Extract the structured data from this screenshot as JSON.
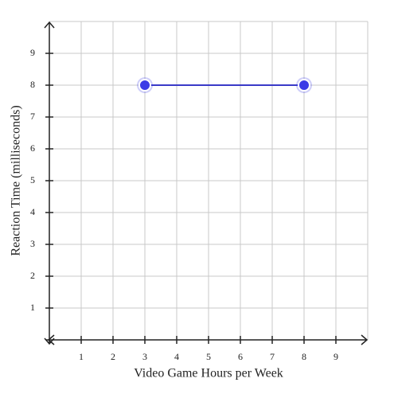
{
  "chart_data": {
    "type": "line",
    "x_label": "Video Game Hours per Week",
    "y_label": "Reaction Time (milliseconds)",
    "x": [
      3,
      8
    ],
    "series": [
      {
        "color": "#3b3be6",
        "line_color": "#3a3ac8",
        "values": [
          8,
          8
        ]
      }
    ],
    "xlim": [
      0,
      10
    ],
    "ylim": [
      0,
      10
    ],
    "xticks": [
      1,
      2,
      3,
      4,
      5,
      6,
      7,
      8,
      9
    ],
    "yticks": [
      1,
      2,
      3,
      4,
      5,
      6,
      7,
      8,
      9
    ],
    "grid": true
  }
}
